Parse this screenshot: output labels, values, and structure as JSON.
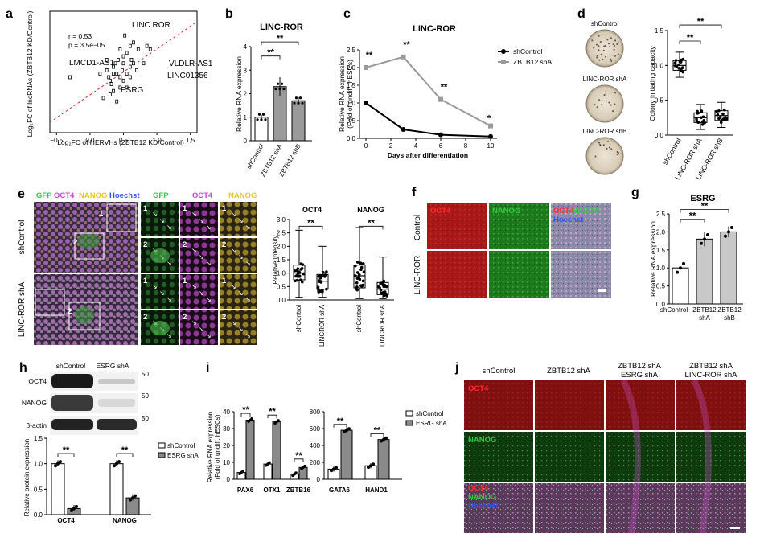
{
  "colors": {
    "red": "#ff2a2a",
    "green": "#2ecc40",
    "magenta": "#d040d0",
    "yellow": "#e6c42d",
    "blue": "#3355ff",
    "grey": "#9a9a9a",
    "dark": "#555555"
  },
  "panel_a": {
    "label": "a",
    "ylabel": "Log₂FC of lncRNAs (ZBTB12 KD/Control)",
    "xlabel": "Log₂FC of HERVHs (ZBTB12 KD/Control)",
    "stats": [
      "r = 0.53",
      "p = 3.5e−05"
    ],
    "annotations": [
      "LINC ROR",
      "LMCD1-AS1",
      "VLDLR-AS1",
      "LINC01356",
      "ESRG"
    ],
    "xticks": [
      "−0,5",
      "0,0",
      "0,5",
      "1,0",
      "1,5"
    ]
  },
  "panel_b": {
    "label": "b",
    "title": "LINC-ROR",
    "ylabel": "Relative RNA expression",
    "yticks": [
      "0",
      "1",
      "2",
      "3",
      "4"
    ],
    "categories": [
      "shControl",
      "ZBTB12 shA",
      "ZBTB12 shB"
    ],
    "sig": [
      "**",
      "**"
    ]
  },
  "panel_c": {
    "label": "c",
    "title": "LINC-ROR",
    "ylabel": "Relative RNA expression (Fold of undiff. hESCs)",
    "xlabel": "Days after differentiation",
    "yticks": [
      "0.0",
      "0.5",
      "1.0",
      "1.5",
      "2.0",
      "2.5"
    ],
    "xticks": [
      "0",
      "2",
      "4",
      "6",
      "8",
      "10"
    ],
    "legend": [
      "shControl",
      "ZBTB12 shA"
    ],
    "sig": [
      "**",
      "**",
      "**",
      "*"
    ]
  },
  "panel_d": {
    "label": "d",
    "plates": [
      "shControl",
      "LINC-ROR shA",
      "LINC-ROR shB"
    ],
    "ylabel": "Colony initiating capacity",
    "yticks": [
      "0.0",
      "0.5",
      "1.0",
      "1.5"
    ],
    "categories": [
      "shControl",
      "LINC-ROR shA",
      "LINC-ROR shB"
    ],
    "sig": [
      "**",
      "**"
    ]
  },
  "panel_e": {
    "label": "e",
    "header": [
      "GFP",
      "OCT4",
      "NANOG",
      "Hoechst"
    ],
    "zoom_header": [
      "GFP",
      "OCT4",
      "NANOG"
    ],
    "rows": [
      "shControl",
      "LINC-ROR shA"
    ],
    "insets": [
      "1",
      "2"
    ],
    "plot_titles": [
      "OCT4",
      "NANOG"
    ],
    "plot_ylabel": "Relative Intensity",
    "plot_yticks": [
      "0.0",
      "0.5",
      "1.0",
      "1.5",
      "2.0",
      "2.5",
      "3.0"
    ],
    "plot_categories": [
      "shControl",
      "LINCROR shA"
    ],
    "sig": [
      "**",
      "**"
    ]
  },
  "panel_f": {
    "label": "f",
    "cols": [
      "OCT4",
      "NANOG",
      "OCT4",
      "NANOG",
      "Hoechst"
    ],
    "rows": [
      "Control",
      "LINC-ROR"
    ]
  },
  "panel_g": {
    "label": "g",
    "title": "ESRG",
    "ylabel": "Relative RNA expression",
    "yticks": [
      "0.0",
      "0.5",
      "1.0",
      "1.5",
      "2.0",
      "2.5"
    ],
    "categories": [
      "shControl",
      "ZBTB12 shA",
      "ZBTB12 shB"
    ],
    "sig": [
      "**",
      "**"
    ]
  },
  "panel_h": {
    "label": "h",
    "lanes": [
      "shControl",
      "ESRG shA"
    ],
    "bands": [
      "OCT4",
      "NANOG",
      "β-actin"
    ],
    "mw": [
      "50",
      "50",
      "50"
    ],
    "ylabel": "Relative protein expression",
    "yticks": [
      "0.0",
      "0.5",
      "1.0",
      "1.5"
    ],
    "categories": [
      "OCT4",
      "NANOG"
    ],
    "legend": [
      "shControl",
      "ESRG shA"
    ],
    "sig": [
      "**",
      "**"
    ]
  },
  "panel_i": {
    "label": "i",
    "ylabel": "Relative RNA expression (Fold of undiff. hESCs)",
    "yticks_left": [
      "0",
      "10",
      "20",
      "30",
      "40"
    ],
    "yticks_right": [
      "0",
      "200",
      "400",
      "600",
      "800"
    ],
    "categories_left": [
      "PAX6",
      "OTX1",
      "ZBTB16"
    ],
    "categories_right": [
      "GATA6",
      "HAND1"
    ],
    "legend": [
      "shControl",
      "ESRG shA"
    ],
    "sig": [
      "**",
      "**",
      "**",
      "**",
      "**"
    ]
  },
  "panel_j": {
    "label": "j",
    "cols": [
      "shControl",
      "ZBTB12 shA",
      "ZBTB12 shA",
      "ESRG shA",
      "ZBTB12 shA",
      "LINC-ROR shA"
    ],
    "rows": [
      "OCT4",
      "NANOG",
      "OCT4",
      "NANOG",
      "Hoechst"
    ]
  },
  "chart_data": [
    {
      "type": "scatter",
      "panel": "a",
      "xlim": [
        -0.6,
        1.6
      ],
      "ylim": [
        -1.5,
        2.0
      ],
      "x": [
        -0.3,
        0.15,
        0.2,
        0.25,
        0.28,
        0.3,
        0.32,
        0.35,
        0.35,
        0.38,
        0.4,
        0.42,
        0.45,
        0.45,
        0.48,
        0.5,
        0.5,
        0.52,
        0.55,
        0.55,
        0.6,
        0.6,
        0.62,
        0.65,
        0.7,
        0.7,
        0.72,
        0.78,
        0.8,
        0.85,
        0.9,
        0.3,
        0.4,
        0.5,
        0.6,
        0.25,
        0.45,
        0.55,
        0.65,
        0.35
      ],
      "y": [
        0.1,
        0.2,
        -0.5,
        0.3,
        0.1,
        0.0,
        -0.1,
        0.4,
        -0.3,
        0.5,
        0.2,
        0.6,
        0.1,
        -0.2,
        0.3,
        0.5,
        0.0,
        1.3,
        0.2,
        0.8,
        0.4,
        1.0,
        0.6,
        1.1,
        0.3,
        1.6,
        0.9,
        1.7,
        0.5,
        1.0,
        0.9,
        -0.4,
        -0.6,
        0.7,
        0.1,
        0.6,
        0.9,
        -0.2,
        0.5,
        0.2
      ]
    },
    {
      "type": "bar",
      "panel": "b",
      "categories": [
        "shControl",
        "ZBTB12 shA",
        "ZBTB12 shB"
      ],
      "values": [
        1.0,
        2.3,
        1.7
      ],
      "errors": [
        0.1,
        0.4,
        0.15
      ],
      "ylim": [
        0,
        4
      ]
    },
    {
      "type": "line",
      "panel": "c",
      "x": [
        0,
        3,
        6,
        10
      ],
      "series": [
        {
          "name": "shControl",
          "values": [
            1.0,
            0.25,
            0.1,
            0.05
          ]
        },
        {
          "name": "ZBTB12 shA",
          "values": [
            2.0,
            2.3,
            1.1,
            0.35
          ]
        }
      ],
      "ylim": [
        0,
        2.5
      ]
    },
    {
      "type": "box",
      "panel": "d",
      "categories": [
        "shControl",
        "LINC-ROR shA",
        "LINC-ROR shB"
      ],
      "values": [
        1.0,
        0.25,
        0.28
      ],
      "ylim": [
        0,
        1.5
      ]
    },
    {
      "type": "box",
      "panel": "e-OCT4",
      "categories": [
        "shControl",
        "LINCROR shA"
      ],
      "values": [
        1.0,
        0.7
      ],
      "ylim": [
        0,
        3.0
      ]
    },
    {
      "type": "box",
      "panel": "e-NANOG",
      "categories": [
        "shControl",
        "LINCROR shA"
      ],
      "values": [
        1.0,
        0.5
      ],
      "ylim": [
        0,
        3.0
      ]
    },
    {
      "type": "bar",
      "panel": "g",
      "categories": [
        "shControl",
        "ZBTB12 shA",
        "ZBTB12 shB"
      ],
      "values": [
        1.0,
        1.8,
        2.0
      ],
      "errors": [
        0.02,
        0.2,
        0.15
      ],
      "ylim": [
        0,
        2.5
      ]
    },
    {
      "type": "bar",
      "panel": "h",
      "categories": [
        "OCT4",
        "NANOG"
      ],
      "series": [
        {
          "name": "shControl",
          "values": [
            1.0,
            1.0
          ]
        },
        {
          "name": "ESRG shA",
          "values": [
            0.12,
            0.33
          ]
        }
      ],
      "ylim": [
        0,
        1.5
      ]
    },
    {
      "type": "bar",
      "panel": "i-left",
      "categories": [
        "PAX6",
        "OTX1",
        "ZBTB16"
      ],
      "series": [
        {
          "name": "shControl",
          "values": [
            4,
            9,
            3
          ]
        },
        {
          "name": "ESRG shA",
          "values": [
            35,
            34,
            7
          ]
        }
      ],
      "ylim": [
        0,
        40
      ]
    },
    {
      "type": "bar",
      "panel": "i-right",
      "categories": [
        "GATA6",
        "HAND1"
      ],
      "series": [
        {
          "name": "shControl",
          "values": [
            120,
            160
          ]
        },
        {
          "name": "ESRG shA",
          "values": [
            580,
            470
          ]
        }
      ],
      "ylim": [
        0,
        800
      ]
    }
  ]
}
